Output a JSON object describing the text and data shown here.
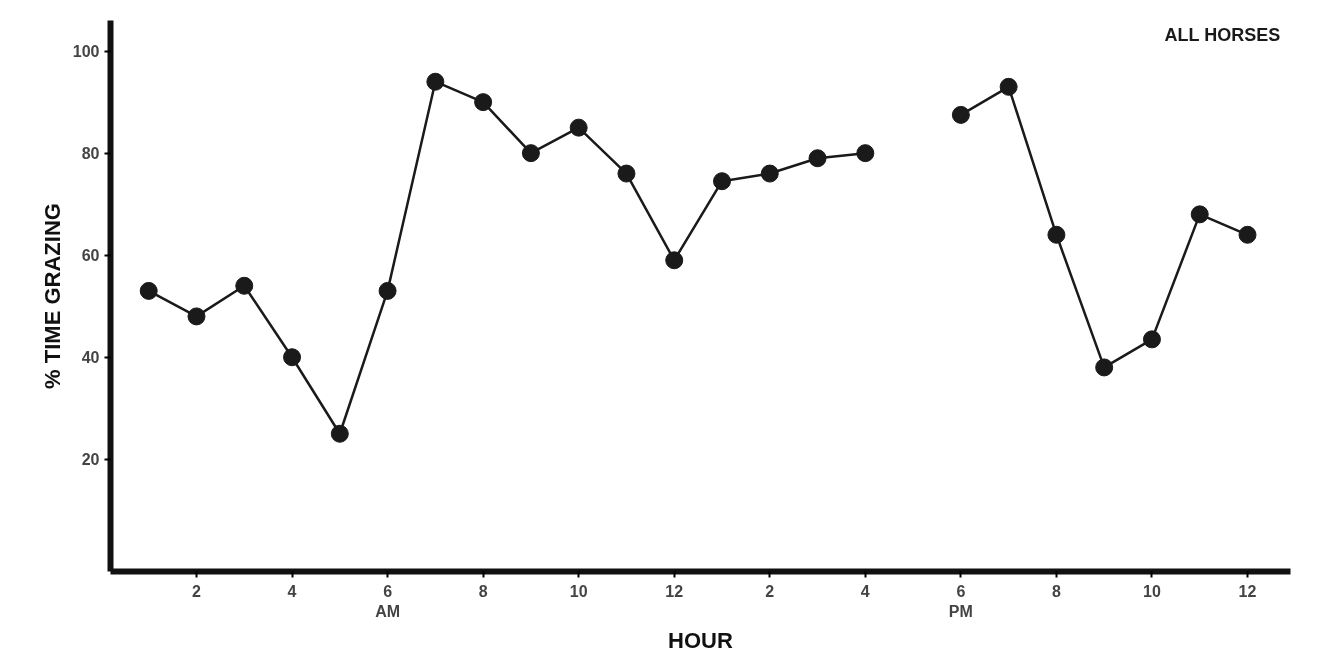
{
  "chart_data": {
    "type": "line",
    "xlabel": "HOUR",
    "ylabel": "% TIME GRAZING",
    "categories": [
      null,
      "2",
      null,
      "4",
      null,
      "6\nAM",
      null,
      "8",
      null,
      "10",
      null,
      "12",
      null,
      "2",
      null,
      "4",
      null,
      "6\nPM",
      null,
      "8",
      null,
      "10",
      null,
      "12"
    ],
    "series": [
      {
        "name": "ALL HORSES",
        "color": "#1a1a1a",
        "values": [
          53,
          48,
          54,
          40,
          25,
          53,
          94,
          90,
          80,
          85,
          76,
          59,
          74.5,
          76,
          79,
          80,
          null,
          87.5,
          93,
          64,
          38,
          43.5,
          68,
          64
        ]
      }
    ],
    "ylim": [
      -2,
      106
    ],
    "yticks": [
      20,
      40,
      60,
      80,
      100
    ],
    "grid": false,
    "marker": "circle",
    "line_style": "solid"
  }
}
